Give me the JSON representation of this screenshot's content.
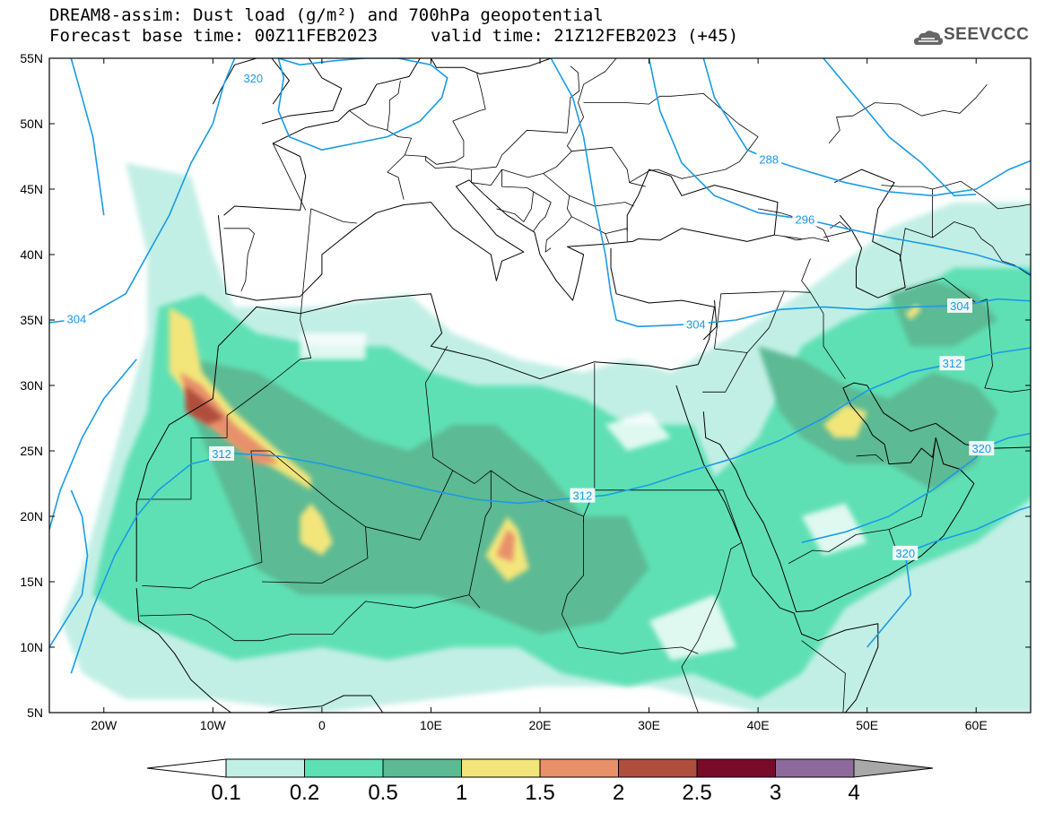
{
  "header": {
    "title_line1": "DREAM8-assim: Dust load (g/m²) and 700hPa geopotential",
    "title_line2_left": "Forecast base time: 00Z11FEB2023",
    "title_line2_right": "valid time: 21Z12FEB2023 (+45)",
    "logo_text": "SEEVCCC"
  },
  "map": {
    "lat_labels": [
      "55N",
      "50N",
      "45N",
      "40N",
      "35N",
      "30N",
      "25N",
      "20N",
      "15N",
      "10N",
      "5N"
    ],
    "lon_labels": [
      "20W",
      "10W",
      "0",
      "10E",
      "20E",
      "30E",
      "40E",
      "50E",
      "60E"
    ],
    "lon_range": [
      -25,
      65
    ],
    "lat_range": [
      5,
      55
    ],
    "contour_labels": [
      {
        "text": "320",
        "lon": -6.3,
        "lat": 53.5
      },
      {
        "text": "288",
        "lon": 41.0,
        "lat": 47.3
      },
      {
        "text": "296",
        "lon": 44.3,
        "lat": 42.7
      },
      {
        "text": "304",
        "lon": -22.5,
        "lat": 35.1
      },
      {
        "text": "304",
        "lon": 34.3,
        "lat": 34.7
      },
      {
        "text": "304",
        "lon": 58.5,
        "lat": 36.1
      },
      {
        "text": "312",
        "lon": -9.2,
        "lat": 24.8
      },
      {
        "text": "312",
        "lon": 23.9,
        "lat": 21.6
      },
      {
        "text": "312",
        "lon": 57.8,
        "lat": 31.7
      },
      {
        "text": "320",
        "lon": 60.5,
        "lat": 25.2
      },
      {
        "text": "320",
        "lon": 53.5,
        "lat": 17.2
      }
    ]
  },
  "colorbar": {
    "levels": [
      "0.1",
      "0.2",
      "0.5",
      "1",
      "1.5",
      "2",
      "2.5",
      "3",
      "4"
    ],
    "colors": [
      "#c2efe5",
      "#5ee0b4",
      "#5cba94",
      "#f2e57a",
      "#e8906a",
      "#b04e3e",
      "#7a0a2a",
      "#8d6a9c",
      "#a8a8a8"
    ]
  }
}
